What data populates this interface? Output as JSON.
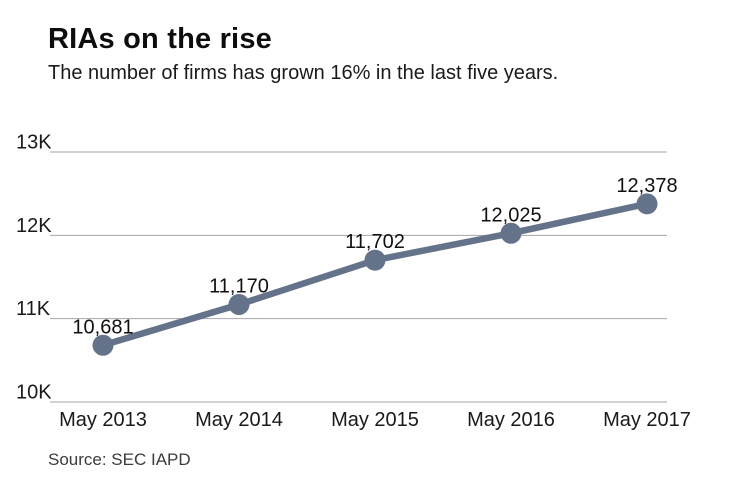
{
  "header": {
    "title": "RIAs on the rise",
    "subtitle": "The number of firms has grown 16% in the last five years."
  },
  "footer": {
    "source": "Source: SEC IAPD"
  },
  "chart_data": {
    "type": "line",
    "title": "RIAs on the rise",
    "subtitle": "The number of firms has grown 16% in the last five years.",
    "categories": [
      "May 2013",
      "May 2014",
      "May 2015",
      "May 2016",
      "May 2017"
    ],
    "values": [
      10681,
      11170,
      11702,
      12025,
      12378
    ],
    "value_labels": [
      "10,681",
      "11,170",
      "11,702",
      "12,025",
      "12,378"
    ],
    "y_ticks": [
      {
        "value": 10000,
        "label": "10K"
      },
      {
        "value": 11000,
        "label": "11K"
      },
      {
        "value": 12000,
        "label": "12K"
      },
      {
        "value": 13000,
        "label": "13K"
      }
    ],
    "ylim": [
      10000,
      13000
    ],
    "xlabel": "",
    "ylabel": "",
    "grid": "horizontal",
    "legend": "none",
    "source": "Source: SEC IAPD",
    "colors": {
      "line": "#64738a",
      "marker": "#64738a",
      "gridline": "#a6a6a6",
      "axis_text": "#1a1a1a",
      "label_text": "#111111",
      "background": "#ffffff"
    }
  }
}
